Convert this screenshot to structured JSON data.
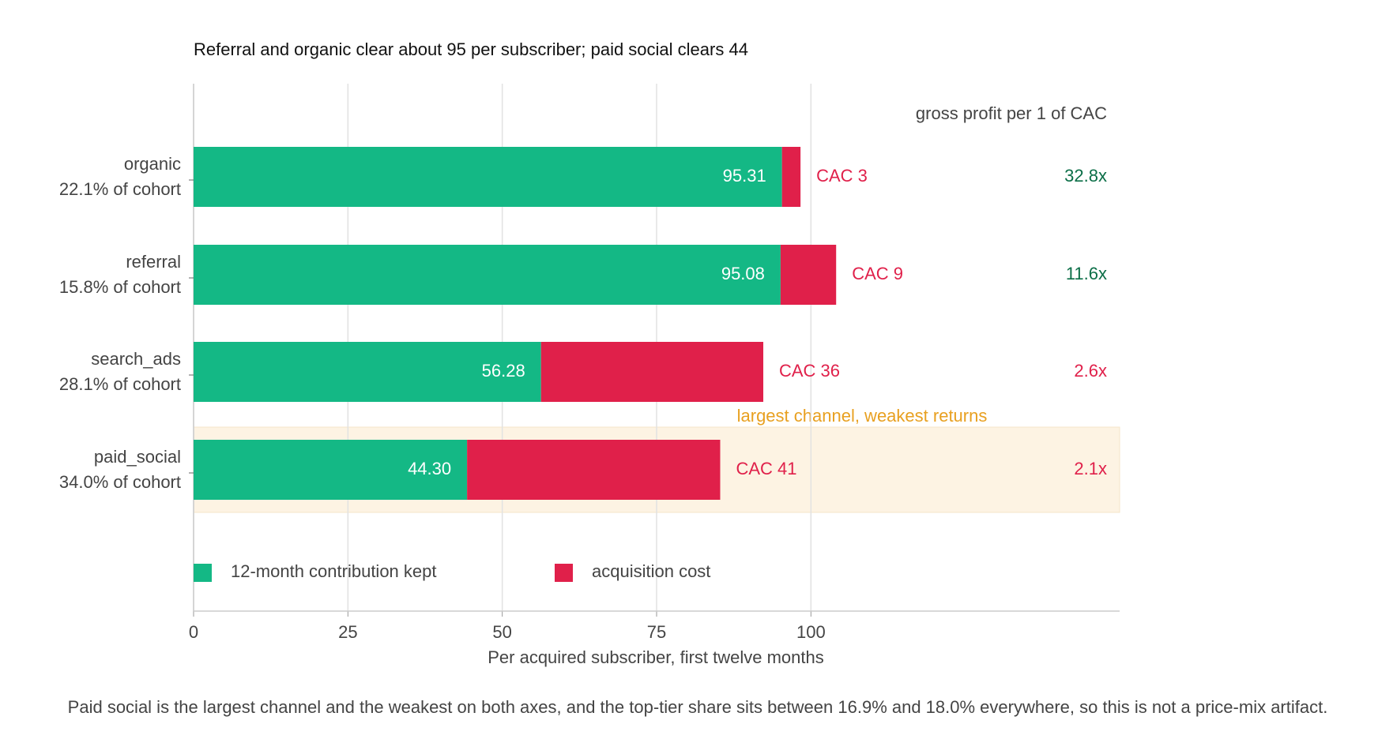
{
  "chart_data": {
    "type": "stacked_barh",
    "title": "Referral and organic clear about 95 per subscriber; paid social clears 44",
    "categories": [
      "organic",
      "referral",
      "search_ads",
      "paid_social"
    ],
    "category_notes": [
      "22.1% of cohort",
      "15.8% of cohort",
      "28.1% of cohort",
      "34.0% of cohort"
    ],
    "series": [
      {
        "name": "12-month contribution kept",
        "color": "#14b885",
        "values": [
          95.31,
          95.08,
          56.28,
          44.3
        ],
        "value_labels": [
          "95.31",
          "95.08",
          "56.28",
          "44.30"
        ]
      },
      {
        "name": "acquisition cost",
        "color": "#e0204a",
        "values": [
          3,
          9,
          36,
          41
        ],
        "value_labels": [
          "CAC 3",
          "CAC 9",
          "CAC 36",
          "CAC 41"
        ]
      }
    ],
    "ratios": {
      "title": "gross profit per 1 of CAC",
      "values": [
        32.8,
        11.6,
        2.6,
        2.1
      ],
      "value_labels": [
        "32.8x",
        "11.6x",
        "2.6x",
        "2.1x"
      ],
      "colors": [
        "#0b6e47",
        "#0b6e47",
        "#e0204a",
        "#e0204a"
      ]
    },
    "highlight_category": "paid_social",
    "highlight_color": "#fdf3e3",
    "annotation": {
      "text": "largest channel, weakest returns",
      "color": "#e8a020"
    },
    "xlabel": "Per acquired subscriber, first twelve months",
    "xlim": [
      0,
      150
    ],
    "xticks": [
      0,
      25,
      50,
      75,
      100
    ],
    "grid": true,
    "footnote": "Paid social is the largest channel and the weakest on both axes, and the top-tier share sits between 16.9% and 18.0% everywhere, so this is not a price-mix artifact."
  }
}
